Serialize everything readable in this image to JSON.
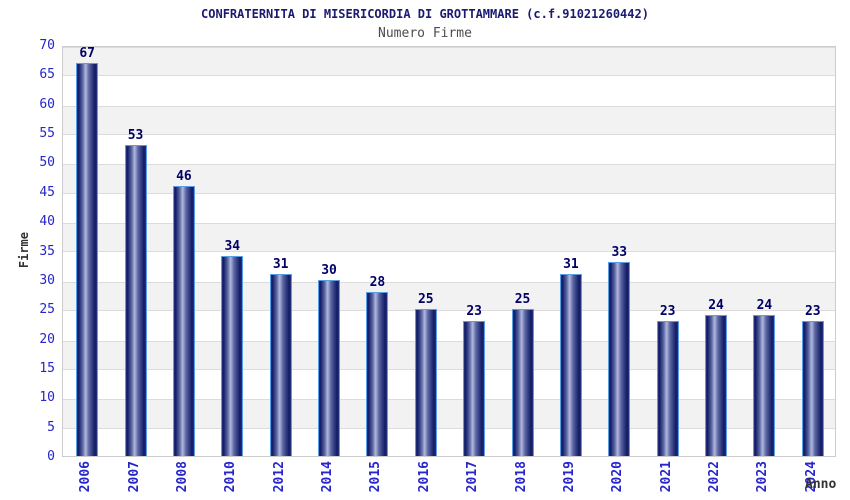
{
  "chart_data": {
    "type": "bar",
    "title": "CONFRATERNITA DI MISERICORDIA DI GROTTAMMARE (c.f.91021260442)",
    "subtitle": "Numero Firme",
    "xlabel": "Anno",
    "ylabel": "Firme",
    "categories": [
      "2006",
      "2007",
      "2008",
      "2010",
      "2012",
      "2014",
      "2015",
      "2016",
      "2017",
      "2018",
      "2019",
      "2020",
      "2021",
      "2022",
      "2023",
      "2024"
    ],
    "values": [
      67,
      53,
      46,
      34,
      31,
      30,
      28,
      25,
      23,
      25,
      31,
      33,
      23,
      24,
      24,
      23
    ],
    "ylim": [
      0,
      70
    ],
    "ytick_step": 5,
    "grid": "alternating-horizontal-bands",
    "legend": "none",
    "colors": {
      "title": "#1a1a70",
      "subtitle": "#4d4d4d",
      "axis_tick_label": "#2626cc",
      "value_label": "#000066",
      "axis_title": "#333333",
      "band_gray": "#f2f2f2",
      "band_white": "#ffffff",
      "grid_line": "#dcdcdc",
      "plot_border": "#cccccc",
      "bar_border": "#5b9ce6",
      "bar_dark": "#111b63",
      "bar_highlight": "#b2b9da"
    }
  }
}
